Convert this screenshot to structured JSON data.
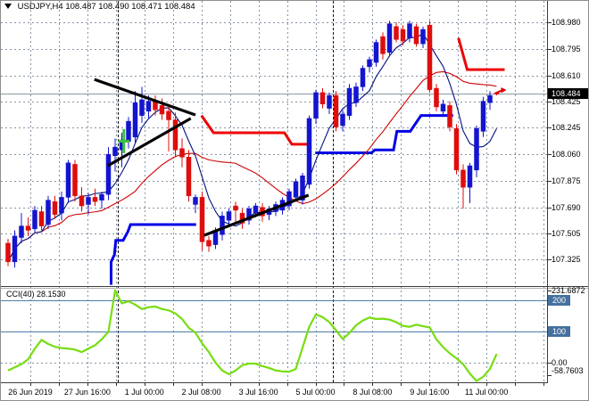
{
  "title": {
    "symbol_period": "USDJPY,H4",
    "ohlc": "108.487 108.490 108.471 108.484"
  },
  "indicator_panel": {
    "name_label": "CCI(40)",
    "value_label": "28.1530"
  },
  "colors": {
    "background": "#ffffff",
    "bull_candle": "#1414cf",
    "bear_candle": "#df0d0d",
    "ma_fast": "#001080",
    "ma_slow": "#d00000",
    "step_blue": "#0000e6",
    "step_red": "#ee0404",
    "cci_line": "#77dd11",
    "level_line": "#4d7ea8",
    "level_badge": "#44719e",
    "grid": "#8593a5",
    "separator_line": "#151515",
    "current_price_line": "#8a9aa2",
    "badge_bg": "#000000",
    "trendline": "#000000",
    "plus_marker": "#3fbf3f",
    "arrow_marker": "#e00000"
  },
  "chart_data": [
    {
      "type": "candlestick",
      "title": "USDJPY,H4",
      "symbol": "USDJPY",
      "timeframe": "H4",
      "last_ohlc": {
        "open": "108.487",
        "high": "108.490",
        "low": "108.471",
        "close": "108.484"
      },
      "current_price": 108.484,
      "price_axis_labels": [
        "108.980",
        "108.795",
        "108.610",
        "108.425",
        "108.245",
        "108.060",
        "107.875",
        "107.690",
        "107.505",
        "107.325"
      ],
      "x_labels": [
        "26 Jun 2019",
        "27 Jun 16:00",
        "1 Jul 00:00",
        "2 Jul 08:00",
        "3 Jul 16:00",
        "5 Jul 00:00",
        "8 Jul 08:00",
        "9 Jul 16:00",
        "11 Jul 00:00"
      ],
      "grid": true,
      "bars": [
        [
          107.44,
          107.47,
          107.28,
          107.31
        ],
        [
          107.31,
          107.53,
          107.27,
          107.49
        ],
        [
          107.48,
          107.65,
          107.44,
          107.56
        ],
        [
          107.56,
          107.62,
          107.49,
          107.53
        ],
        [
          107.54,
          107.7,
          107.51,
          107.67
        ],
        [
          107.66,
          107.7,
          107.53,
          107.56
        ],
        [
          107.57,
          107.77,
          107.54,
          107.74
        ],
        [
          107.73,
          107.77,
          107.61,
          107.64
        ],
        [
          107.65,
          107.8,
          107.6,
          107.76
        ],
        [
          107.76,
          108.02,
          107.72,
          108.0
        ],
        [
          107.99,
          108.02,
          107.73,
          107.77
        ],
        [
          107.77,
          107.83,
          107.66,
          107.7
        ],
        [
          107.71,
          107.79,
          107.64,
          107.76
        ],
        [
          107.76,
          107.82,
          107.7,
          107.73
        ],
        [
          107.74,
          107.8,
          107.68,
          107.78
        ],
        [
          107.78,
          108.11,
          107.74,
          108.06
        ],
        [
          108.05,
          108.17,
          107.94,
          108.11
        ],
        [
          108.09,
          108.21,
          107.97,
          108.16
        ],
        [
          108.15,
          108.32,
          108.1,
          108.29
        ],
        [
          108.18,
          108.5,
          108.14,
          108.42
        ],
        [
          108.33,
          108.53,
          108.28,
          108.44
        ],
        [
          108.36,
          108.47,
          108.31,
          108.43
        ],
        [
          108.43,
          108.47,
          108.33,
          108.37
        ],
        [
          108.4,
          108.45,
          108.3,
          108.34
        ],
        [
          108.36,
          108.41,
          108.08,
          108.3
        ],
        [
          108.3,
          108.35,
          108.04,
          108.09
        ],
        [
          108.1,
          108.17,
          107.97,
          108.04
        ],
        [
          108.04,
          108.09,
          107.73,
          107.77
        ],
        [
          107.71,
          107.78,
          107.65,
          107.76
        ],
        [
          107.76,
          107.8,
          107.39,
          107.45
        ],
        [
          107.46,
          107.49,
          107.38,
          107.42
        ],
        [
          107.43,
          107.55,
          107.4,
          107.53
        ],
        [
          107.5,
          107.66,
          107.46,
          107.63
        ],
        [
          107.6,
          107.68,
          107.56,
          107.66
        ],
        [
          107.7,
          107.73,
          107.58,
          107.67
        ],
        [
          107.65,
          107.68,
          107.54,
          107.58
        ],
        [
          107.6,
          107.7,
          107.57,
          107.68
        ],
        [
          107.65,
          107.72,
          107.62,
          107.7
        ],
        [
          107.69,
          107.72,
          107.59,
          107.63
        ],
        [
          107.64,
          107.7,
          107.6,
          107.68
        ],
        [
          107.66,
          107.73,
          107.63,
          107.71
        ],
        [
          107.67,
          107.76,
          107.64,
          107.74
        ],
        [
          107.7,
          107.82,
          107.67,
          107.8
        ],
        [
          107.76,
          107.89,
          107.73,
          107.87
        ],
        [
          107.74,
          107.93,
          107.71,
          107.91
        ],
        [
          107.85,
          108.33,
          107.82,
          108.31
        ],
        [
          108.31,
          108.51,
          108.27,
          108.49
        ],
        [
          108.49,
          108.52,
          108.38,
          108.41
        ],
        [
          108.38,
          108.49,
          108.34,
          108.47
        ],
        [
          108.47,
          108.5,
          108.22,
          108.25
        ],
        [
          108.26,
          108.37,
          108.22,
          108.34
        ],
        [
          108.33,
          108.55,
          108.3,
          108.52
        ],
        [
          108.42,
          108.56,
          108.39,
          108.53
        ],
        [
          108.53,
          108.68,
          108.5,
          108.66
        ],
        [
          108.67,
          108.74,
          108.63,
          108.72
        ],
        [
          108.7,
          108.86,
          108.67,
          108.84
        ],
        [
          108.88,
          108.91,
          108.72,
          108.76
        ],
        [
          108.77,
          108.99,
          108.74,
          108.97
        ],
        [
          108.95,
          108.98,
          108.84,
          108.86
        ],
        [
          108.93,
          108.96,
          108.82,
          108.85
        ],
        [
          108.87,
          108.99,
          108.84,
          108.97
        ],
        [
          108.95,
          108.97,
          108.81,
          108.83
        ],
        [
          108.83,
          108.95,
          108.8,
          108.93
        ],
        [
          108.96,
          108.99,
          108.49,
          108.51
        ],
        [
          108.52,
          108.55,
          108.36,
          108.39
        ],
        [
          108.36,
          108.44,
          108.32,
          108.41
        ],
        [
          108.4,
          108.43,
          108.22,
          108.25
        ],
        [
          108.24,
          108.27,
          107.92,
          107.95
        ],
        [
          107.95,
          107.99,
          107.68,
          107.83
        ],
        [
          107.83,
          108.0,
          107.72,
          107.98
        ],
        [
          107.95,
          108.26,
          107.9,
          108.24
        ],
        [
          108.22,
          108.46,
          108.18,
          108.43
        ],
        [
          108.42,
          108.5,
          108.37,
          108.47
        ],
        [
          108.487,
          108.49,
          108.471,
          108.484
        ]
      ],
      "overlays": {
        "ma_fast_period": 6,
        "ma_slow_period": 20
      },
      "step_lines": {
        "blue_segments": [
          [
            [
              15.4,
              107.15
            ],
            [
              15.4,
              107.31
            ],
            [
              15.9,
              107.36
            ],
            [
              16.1,
              107.46
            ],
            [
              17.2,
              107.46
            ],
            [
              17.9,
              107.52
            ],
            [
              18.3,
              107.57
            ],
            [
              28.1,
              107.57
            ]
          ],
          [
            [
              45.9,
              108.07
            ],
            [
              54.3,
              108.07
            ],
            [
              54.8,
              108.09
            ],
            [
              57.6,
              108.09
            ],
            [
              58.1,
              108.22
            ],
            [
              60.1,
              108.22
            ],
            [
              61.7,
              108.33
            ],
            [
              66.5,
              108.33
            ]
          ]
        ],
        "red_segments": [
          [
            [
              28.9,
              108.33
            ],
            [
              30.7,
              108.21
            ],
            [
              41.3,
              108.21
            ],
            [
              42.4,
              108.13
            ],
            [
              44.8,
              108.13
            ]
          ],
          [
            [
              67.3,
              108.87
            ],
            [
              68.6,
              108.65
            ],
            [
              74.2,
              108.65
            ]
          ]
        ]
      },
      "trendlines": [
        [
          12.9,
          108.582,
          28.0,
          108.334
        ],
        [
          14.9,
          107.98,
          27.3,
          108.31
        ],
        [
          29.3,
          107.495,
          44.9,
          107.775
        ]
      ],
      "markers": [
        {
          "type": "plus",
          "bar": 17.3,
          "price": 108.151
        },
        {
          "type": "arrow-right",
          "bar": 73.8,
          "price": 108.505
        }
      ],
      "vlines_bars": [
        16.4,
        48.5
      ],
      "ylim": [
        107.15,
        109.13
      ]
    },
    {
      "type": "line",
      "name": "CCI",
      "period": 40,
      "current_value": 28.153,
      "levels": [
        200,
        100
      ],
      "zero_level": 0,
      "scale_labels": [
        {
          "text": "231.6872",
          "value": 231.6872
        },
        {
          "text": "0.00",
          "value": 0
        },
        {
          "text": "-58.7603",
          "value": -58.7603
        }
      ],
      "level_badges": [
        {
          "text": "200",
          "value": 200
        },
        {
          "text": "100",
          "value": 100
        }
      ],
      "ylim": [
        -58.7603,
        231.6872
      ],
      "values": [
        -25,
        -15,
        -5,
        11,
        45,
        73,
        60,
        51,
        47,
        45,
        42,
        34,
        45,
        56,
        75,
        99,
        231.7,
        190,
        197,
        186,
        172,
        178,
        180,
        172,
        168,
        158,
        140,
        112,
        96,
        62,
        34,
        0,
        -25,
        -37,
        -25,
        -8,
        -3,
        -3,
        -11,
        -17,
        -25,
        -28,
        -29,
        -20,
        48,
        115,
        155,
        146,
        130,
        104,
        76,
        95,
        120,
        135,
        145,
        140,
        141,
        138,
        130,
        118,
        115,
        122,
        117,
        113,
        75,
        50,
        30,
        14,
        -5,
        -35,
        -58.8,
        -45,
        -20,
        28.15
      ]
    }
  ]
}
